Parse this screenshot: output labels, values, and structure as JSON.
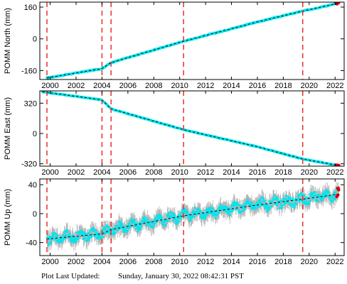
{
  "chart_data": [
    {
      "type": "scatter",
      "ylabel": "POMM North (mm)",
      "xlim": [
        1999.2,
        2022.7
      ],
      "ylim": [
        -205,
        185
      ],
      "yticks": [
        -160,
        0,
        160
      ],
      "xticks": [
        2000,
        2002,
        2004,
        2006,
        2008,
        2010,
        2012,
        2014,
        2016,
        2018,
        2020,
        2022
      ],
      "event_lines": [
        1999.75,
        2004.0,
        2004.7,
        2010.3,
        2019.5
      ],
      "trend": [
        {
          "x": 1999.75,
          "y": -197
        },
        {
          "x": 2004.0,
          "y": -150
        },
        {
          "x": 2004.7,
          "y": -120
        },
        {
          "x": 2010.3,
          "y": -12
        },
        {
          "x": 2016.0,
          "y": 85
        },
        {
          "x": 2019.5,
          "y": 140
        },
        {
          "x": 2022.3,
          "y": 180
        }
      ],
      "colors": {
        "data": "#00e5ee",
        "trend": "#000000",
        "events": "#e8302a",
        "latest": "#dd0000"
      }
    },
    {
      "type": "scatter",
      "ylabel": "POMM East (mm)",
      "xlim": [
        1999.2,
        2022.7
      ],
      "ylim": [
        -345,
        450
      ],
      "yticks": [
        -320,
        0,
        320
      ],
      "xticks": [
        2000,
        2002,
        2004,
        2006,
        2008,
        2010,
        2012,
        2014,
        2016,
        2018,
        2020,
        2022
      ],
      "event_lines": [
        1999.75,
        2004.0,
        2004.7,
        2010.3,
        2019.5
      ],
      "trend": [
        {
          "x": 1999.4,
          "y": 440
        },
        {
          "x": 2004.0,
          "y": 355
        },
        {
          "x": 2004.7,
          "y": 260
        },
        {
          "x": 2010.3,
          "y": 40
        },
        {
          "x": 2016.0,
          "y": -140
        },
        {
          "x": 2019.5,
          "y": -270
        },
        {
          "x": 2022.3,
          "y": -340
        }
      ],
      "colors": {
        "data": "#00e5ee",
        "trend": "#000000",
        "events": "#e8302a",
        "latest": "#dd0000"
      }
    },
    {
      "type": "scatter",
      "ylabel": "POMM Up (mm)",
      "xlim": [
        1999.2,
        2022.7
      ],
      "ylim": [
        -58,
        48
      ],
      "yticks": [
        -40,
        0,
        40
      ],
      "xticks": [
        2000,
        2002,
        2004,
        2006,
        2008,
        2010,
        2012,
        2014,
        2016,
        2018,
        2020,
        2022
      ],
      "event_lines": [
        1999.75,
        2004.0,
        2004.7,
        2010.3,
        2019.5
      ],
      "trend": [
        {
          "x": 1999.75,
          "y": -35
        },
        {
          "x": 2004.0,
          "y": -28
        },
        {
          "x": 2004.7,
          "y": -22
        },
        {
          "x": 2010.3,
          "y": -3
        },
        {
          "x": 2016.0,
          "y": 12
        },
        {
          "x": 2019.5,
          "y": 20
        },
        {
          "x": 2022.3,
          "y": 27
        }
      ],
      "colors": {
        "data": "#00e5ee",
        "errorbars": "#b5b5b5",
        "trend": "#000000",
        "events": "#e8302a",
        "latest": "#dd0000"
      }
    }
  ],
  "footer": {
    "label": "Plot Last Updated:",
    "timestamp": "Sunday, January 30, 2022 08:42:31 PST"
  }
}
